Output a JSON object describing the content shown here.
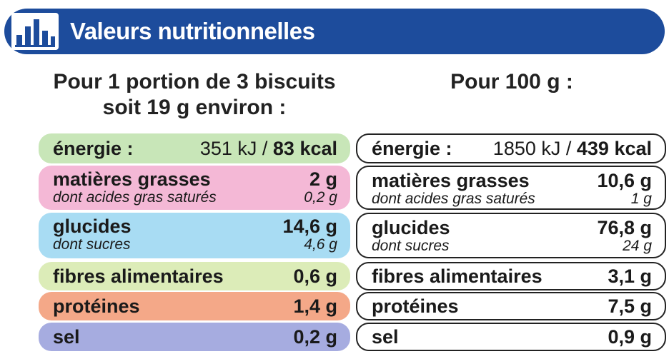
{
  "header": {
    "title": "Valeurs nutritionnelles",
    "icon": "bar-chart-icon",
    "bg_color": "#1d4c9c"
  },
  "per_portion": {
    "heading_line1": "Pour 1 portion de 3 biscuits",
    "heading_line2": "soit 19 g environ :",
    "rows": {
      "energy": {
        "label": "énergie :",
        "kj": "351 kJ",
        "sep": " / ",
        "kcal": "83 kcal",
        "color": "#c8e6b8"
      },
      "fat": {
        "label": "matières grasses",
        "value": "2 g",
        "sub_label": "dont acides gras saturés",
        "sub_value": "0,2 g",
        "color": "#f4b8d6"
      },
      "carbs": {
        "label": "glucides",
        "value": "14,6 g",
        "sub_label": "dont sucres",
        "sub_value": "4,6 g",
        "color": "#a8dcf3"
      },
      "fiber": {
        "label": "fibres alimentaires",
        "value": "0,6 g",
        "color": "#dcecb8"
      },
      "protein": {
        "label": "protéines",
        "value": "1,4 g",
        "color": "#f4a888"
      },
      "salt": {
        "label": "sel",
        "value": "0,2 g",
        "color": "#a6ace0"
      }
    }
  },
  "per_100g": {
    "heading": "Pour 100 g :",
    "rows": {
      "energy": {
        "label": "énergie :",
        "kj": "1850 kJ",
        "sep": " / ",
        "kcal": "439 kcal"
      },
      "fat": {
        "label": "matières grasses",
        "value": "10,6 g",
        "sub_label": "dont acides gras saturés",
        "sub_value": "1 g"
      },
      "carbs": {
        "label": "glucides",
        "value": "76,8 g",
        "sub_label": "dont sucres",
        "sub_value": "24 g"
      },
      "fiber": {
        "label": "fibres alimentaires",
        "value": "3,1 g"
      },
      "protein": {
        "label": "protéines",
        "value": "7,5 g"
      },
      "salt": {
        "label": "sel",
        "value": "0,9 g"
      }
    }
  }
}
